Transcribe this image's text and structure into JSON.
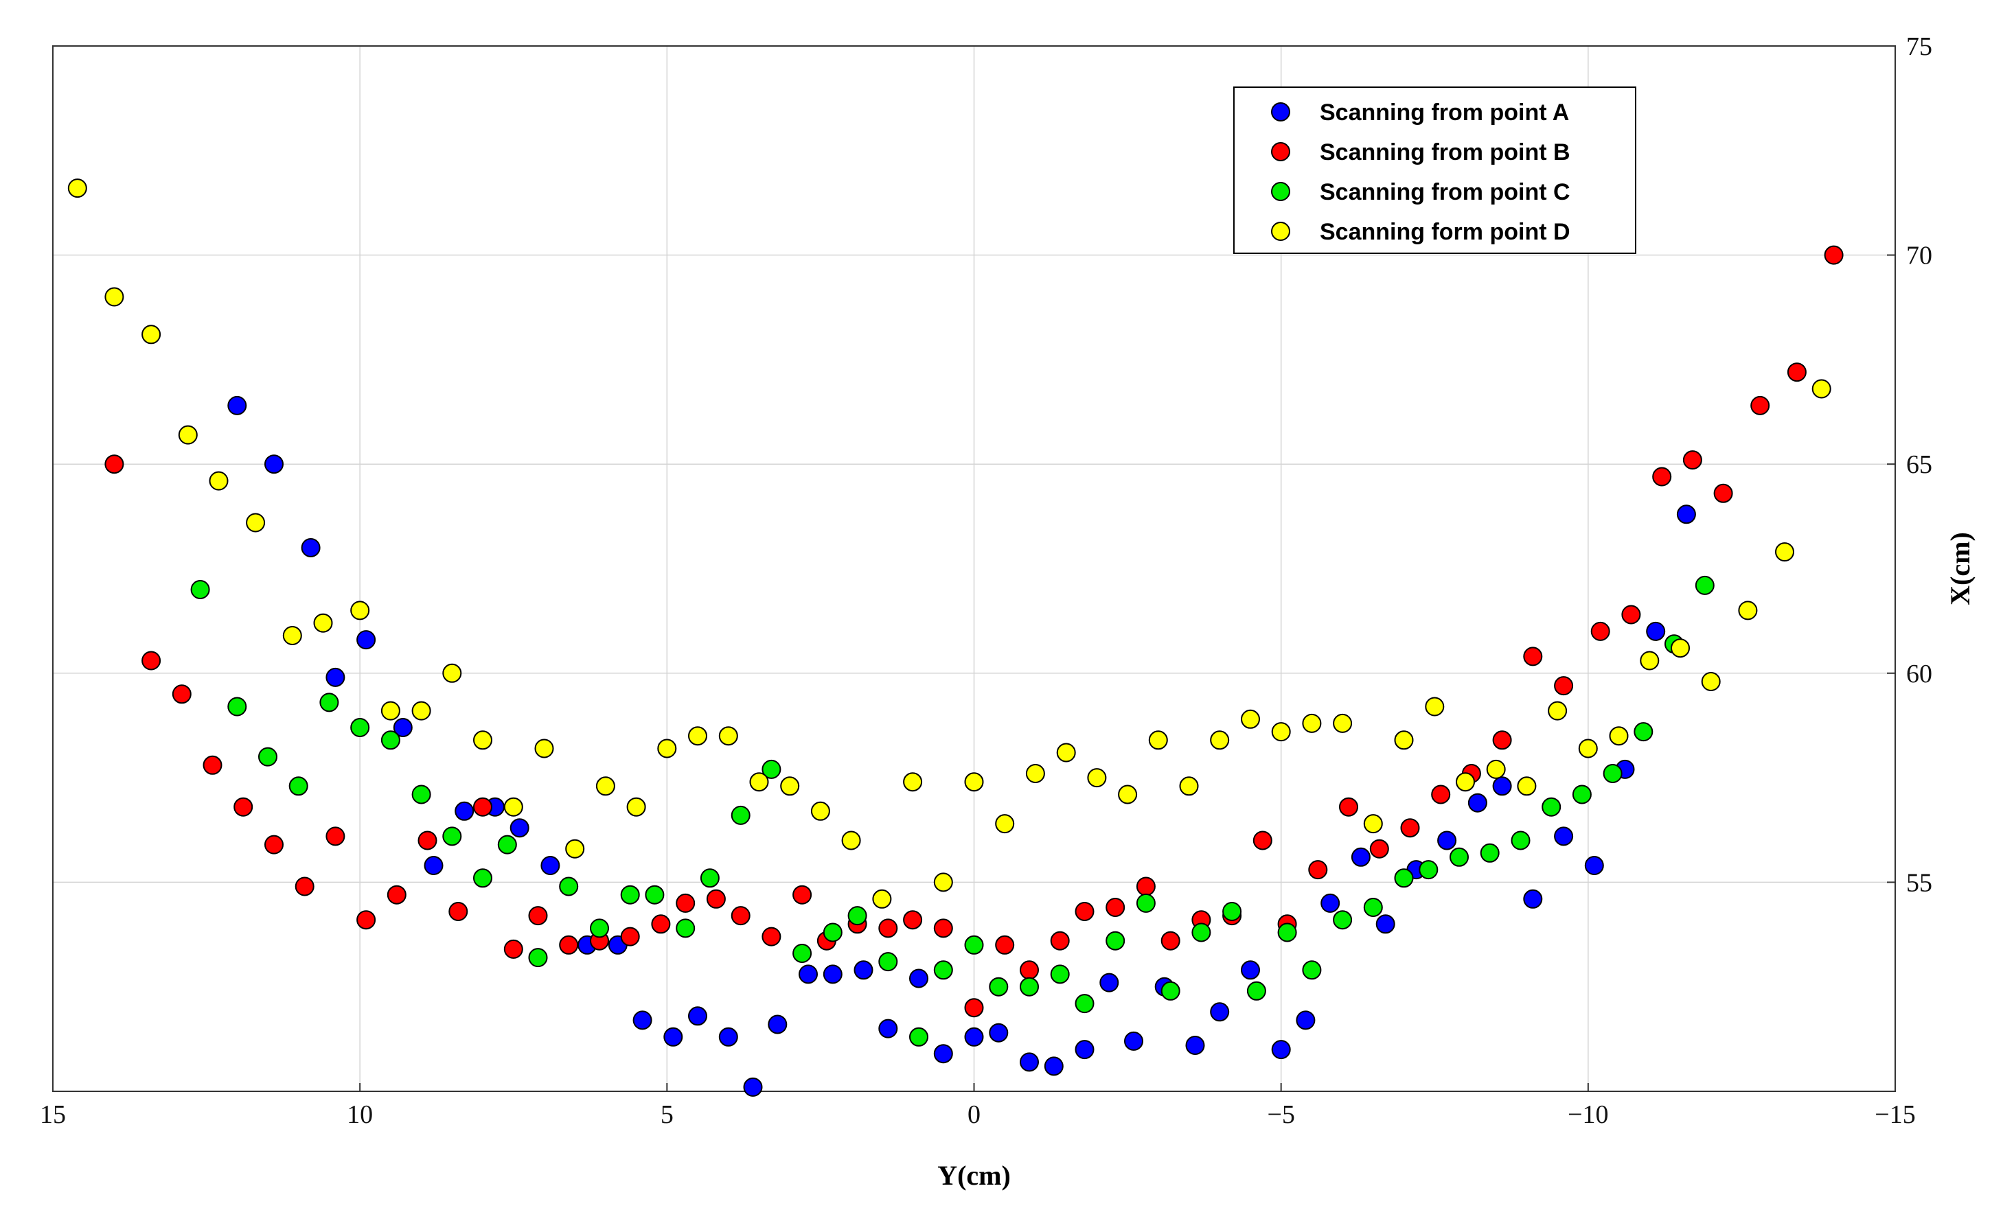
{
  "chart_data": {
    "type": "scatter",
    "title": "",
    "xlabel": "Y(cm)",
    "ylabel": "X(cm)",
    "xlim": [
      15,
      -15
    ],
    "ylim": [
      50,
      75
    ],
    "x_reversed": true,
    "x_ticks": [
      15,
      10,
      5,
      0,
      -5,
      -10,
      -15
    ],
    "x_tick_labels": [
      "15",
      "10",
      "5",
      "0",
      "−5",
      "−10",
      "−15"
    ],
    "y_ticks": [
      55,
      60,
      65,
      70,
      75
    ],
    "y_tick_labels": [
      "55",
      "60",
      "65",
      "70",
      "75"
    ],
    "y_axis_side": "right",
    "grid": true,
    "legend_position": "top-right",
    "series": [
      {
        "name": "Scanning from point A",
        "color": "#0000ff",
        "points": [
          [
            12.0,
            66.4
          ],
          [
            11.4,
            65.0
          ],
          [
            10.8,
            63.0
          ],
          [
            10.4,
            59.9
          ],
          [
            9.9,
            60.8
          ],
          [
            9.3,
            58.7
          ],
          [
            8.8,
            55.4
          ],
          [
            8.3,
            56.7
          ],
          [
            7.8,
            56.8
          ],
          [
            7.4,
            56.3
          ],
          [
            6.9,
            55.4
          ],
          [
            6.3,
            53.5
          ],
          [
            5.8,
            53.5
          ],
          [
            5.4,
            51.7
          ],
          [
            4.9,
            51.3
          ],
          [
            4.5,
            51.8
          ],
          [
            4.0,
            51.3
          ],
          [
            3.6,
            50.1
          ],
          [
            3.2,
            51.6
          ],
          [
            2.7,
            52.8
          ],
          [
            2.3,
            52.8
          ],
          [
            1.8,
            52.9
          ],
          [
            1.4,
            51.5
          ],
          [
            0.9,
            52.7
          ],
          [
            0.5,
            50.9
          ],
          [
            0.0,
            51.3
          ],
          [
            -0.4,
            51.4
          ],
          [
            -0.9,
            50.7
          ],
          [
            -1.3,
            50.6
          ],
          [
            -1.8,
            51.0
          ],
          [
            -2.2,
            52.6
          ],
          [
            -2.6,
            51.2
          ],
          [
            -3.1,
            52.5
          ],
          [
            -3.6,
            51.1
          ],
          [
            -4.0,
            51.9
          ],
          [
            -4.5,
            52.9
          ],
          [
            -5.0,
            51.0
          ],
          [
            -5.4,
            51.7
          ],
          [
            -5.8,
            54.5
          ],
          [
            -6.3,
            55.6
          ],
          [
            -6.7,
            54.0
          ],
          [
            -7.2,
            55.3
          ],
          [
            -7.7,
            56.0
          ],
          [
            -8.2,
            56.9
          ],
          [
            -8.6,
            57.3
          ],
          [
            -9.1,
            54.6
          ],
          [
            -9.6,
            56.1
          ],
          [
            -10.1,
            55.4
          ],
          [
            -10.6,
            57.7
          ],
          [
            -11.1,
            61.0
          ],
          [
            -11.6,
            63.8
          ]
        ]
      },
      {
        "name": "Scanning from point B",
        "color": "#ff0000",
        "points": [
          [
            14.0,
            65.0
          ],
          [
            13.4,
            60.3
          ],
          [
            12.9,
            59.5
          ],
          [
            12.4,
            57.8
          ],
          [
            11.9,
            56.8
          ],
          [
            11.4,
            55.9
          ],
          [
            10.9,
            54.9
          ],
          [
            10.4,
            56.1
          ],
          [
            9.9,
            54.1
          ],
          [
            9.4,
            54.7
          ],
          [
            8.9,
            56.0
          ],
          [
            8.4,
            54.3
          ],
          [
            8.0,
            56.8
          ],
          [
            7.5,
            53.4
          ],
          [
            7.1,
            54.2
          ],
          [
            6.6,
            53.5
          ],
          [
            6.1,
            53.6
          ],
          [
            5.6,
            53.7
          ],
          [
            5.1,
            54.0
          ],
          [
            4.7,
            54.5
          ],
          [
            4.2,
            54.6
          ],
          [
            3.8,
            54.2
          ],
          [
            3.3,
            53.7
          ],
          [
            2.8,
            54.7
          ],
          [
            2.4,
            53.6
          ],
          [
            1.9,
            54.0
          ],
          [
            1.4,
            53.9
          ],
          [
            1.0,
            54.1
          ],
          [
            0.5,
            53.9
          ],
          [
            0.0,
            52.0
          ],
          [
            -0.5,
            53.5
          ],
          [
            -0.9,
            52.9
          ],
          [
            -1.4,
            53.6
          ],
          [
            -1.8,
            54.3
          ],
          [
            -2.3,
            54.4
          ],
          [
            -2.8,
            54.9
          ],
          [
            -3.2,
            53.6
          ],
          [
            -3.7,
            54.1
          ],
          [
            -4.2,
            54.2
          ],
          [
            -4.7,
            56.0
          ],
          [
            -5.1,
            54.0
          ],
          [
            -5.6,
            55.3
          ],
          [
            -6.1,
            56.8
          ],
          [
            -6.6,
            55.8
          ],
          [
            -7.1,
            56.3
          ],
          [
            -7.6,
            57.1
          ],
          [
            -8.1,
            57.6
          ],
          [
            -8.6,
            58.4
          ],
          [
            -9.1,
            60.4
          ],
          [
            -9.6,
            59.7
          ],
          [
            -10.2,
            61.0
          ],
          [
            -10.7,
            61.4
          ],
          [
            -11.2,
            64.7
          ],
          [
            -11.7,
            65.1
          ],
          [
            -12.2,
            64.3
          ],
          [
            -12.8,
            66.4
          ],
          [
            -13.4,
            67.2
          ],
          [
            -14.0,
            70.0
          ]
        ]
      },
      {
        "name": "Scanning from point C",
        "color": "#00ee00",
        "points": [
          [
            12.6,
            62.0
          ],
          [
            12.0,
            59.2
          ],
          [
            11.5,
            58.0
          ],
          [
            11.0,
            57.3
          ],
          [
            10.5,
            59.3
          ],
          [
            10.0,
            58.7
          ],
          [
            9.5,
            58.4
          ],
          [
            9.0,
            57.1
          ],
          [
            8.5,
            56.1
          ],
          [
            8.0,
            55.1
          ],
          [
            7.6,
            55.9
          ],
          [
            7.1,
            53.2
          ],
          [
            6.6,
            54.9
          ],
          [
            6.1,
            53.9
          ],
          [
            5.6,
            54.7
          ],
          [
            5.2,
            54.7
          ],
          [
            4.7,
            53.9
          ],
          [
            4.3,
            55.1
          ],
          [
            3.8,
            56.6
          ],
          [
            3.3,
            57.7
          ],
          [
            2.8,
            53.3
          ],
          [
            2.3,
            53.8
          ],
          [
            1.9,
            54.2
          ],
          [
            1.4,
            53.1
          ],
          [
            0.9,
            51.3
          ],
          [
            0.5,
            52.9
          ],
          [
            0.0,
            53.5
          ],
          [
            -0.4,
            52.5
          ],
          [
            -0.9,
            52.5
          ],
          [
            -1.4,
            52.8
          ],
          [
            -1.8,
            52.1
          ],
          [
            -2.3,
            53.6
          ],
          [
            -2.8,
            54.5
          ],
          [
            -3.2,
            52.4
          ],
          [
            -3.7,
            53.8
          ],
          [
            -4.2,
            54.3
          ],
          [
            -4.6,
            52.4
          ],
          [
            -5.1,
            53.8
          ],
          [
            -5.5,
            52.9
          ],
          [
            -6.0,
            54.1
          ],
          [
            -6.5,
            54.4
          ],
          [
            -7.0,
            55.1
          ],
          [
            -7.4,
            55.3
          ],
          [
            -7.9,
            55.6
          ],
          [
            -8.4,
            55.7
          ],
          [
            -8.9,
            56.0
          ],
          [
            -9.4,
            56.8
          ],
          [
            -9.9,
            57.1
          ],
          [
            -10.4,
            57.6
          ],
          [
            -10.9,
            58.6
          ],
          [
            -11.4,
            60.7
          ],
          [
            -11.9,
            62.1
          ]
        ]
      },
      {
        "name": "Scanning form point D",
        "color": "#ffff00",
        "points": [
          [
            14.6,
            71.6
          ],
          [
            14.0,
            69.0
          ],
          [
            13.4,
            68.1
          ],
          [
            12.8,
            65.7
          ],
          [
            12.3,
            64.6
          ],
          [
            11.7,
            63.6
          ],
          [
            11.1,
            60.9
          ],
          [
            10.6,
            61.2
          ],
          [
            10.0,
            61.5
          ],
          [
            9.5,
            59.1
          ],
          [
            9.0,
            59.1
          ],
          [
            8.5,
            60.0
          ],
          [
            8.0,
            58.4
          ],
          [
            7.5,
            56.8
          ],
          [
            7.0,
            58.2
          ],
          [
            6.5,
            55.8
          ],
          [
            6.0,
            57.3
          ],
          [
            5.5,
            56.8
          ],
          [
            5.0,
            58.2
          ],
          [
            4.5,
            58.5
          ],
          [
            4.0,
            58.5
          ],
          [
            3.5,
            57.4
          ],
          [
            3.0,
            57.3
          ],
          [
            2.5,
            56.7
          ],
          [
            2.0,
            56.0
          ],
          [
            1.5,
            54.6
          ],
          [
            1.0,
            57.4
          ],
          [
            0.5,
            55.0
          ],
          [
            0.0,
            57.4
          ],
          [
            -0.5,
            56.4
          ],
          [
            -1.0,
            57.6
          ],
          [
            -1.5,
            58.1
          ],
          [
            -2.0,
            57.5
          ],
          [
            -2.5,
            57.1
          ],
          [
            -3.0,
            58.4
          ],
          [
            -3.5,
            57.3
          ],
          [
            -4.0,
            58.4
          ],
          [
            -4.5,
            58.9
          ],
          [
            -5.0,
            58.6
          ],
          [
            -5.5,
            58.8
          ],
          [
            -6.0,
            58.8
          ],
          [
            -6.5,
            56.4
          ],
          [
            -7.0,
            58.4
          ],
          [
            -7.5,
            59.2
          ],
          [
            -8.0,
            57.4
          ],
          [
            -8.5,
            57.7
          ],
          [
            -9.0,
            57.3
          ],
          [
            -9.5,
            59.1
          ],
          [
            -10.0,
            58.2
          ],
          [
            -10.5,
            58.5
          ],
          [
            -11.0,
            60.3
          ],
          [
            -11.5,
            60.6
          ],
          [
            -12.0,
            59.8
          ],
          [
            -12.6,
            61.5
          ],
          [
            -13.2,
            62.9
          ],
          [
            -13.8,
            66.8
          ]
        ]
      }
    ]
  }
}
